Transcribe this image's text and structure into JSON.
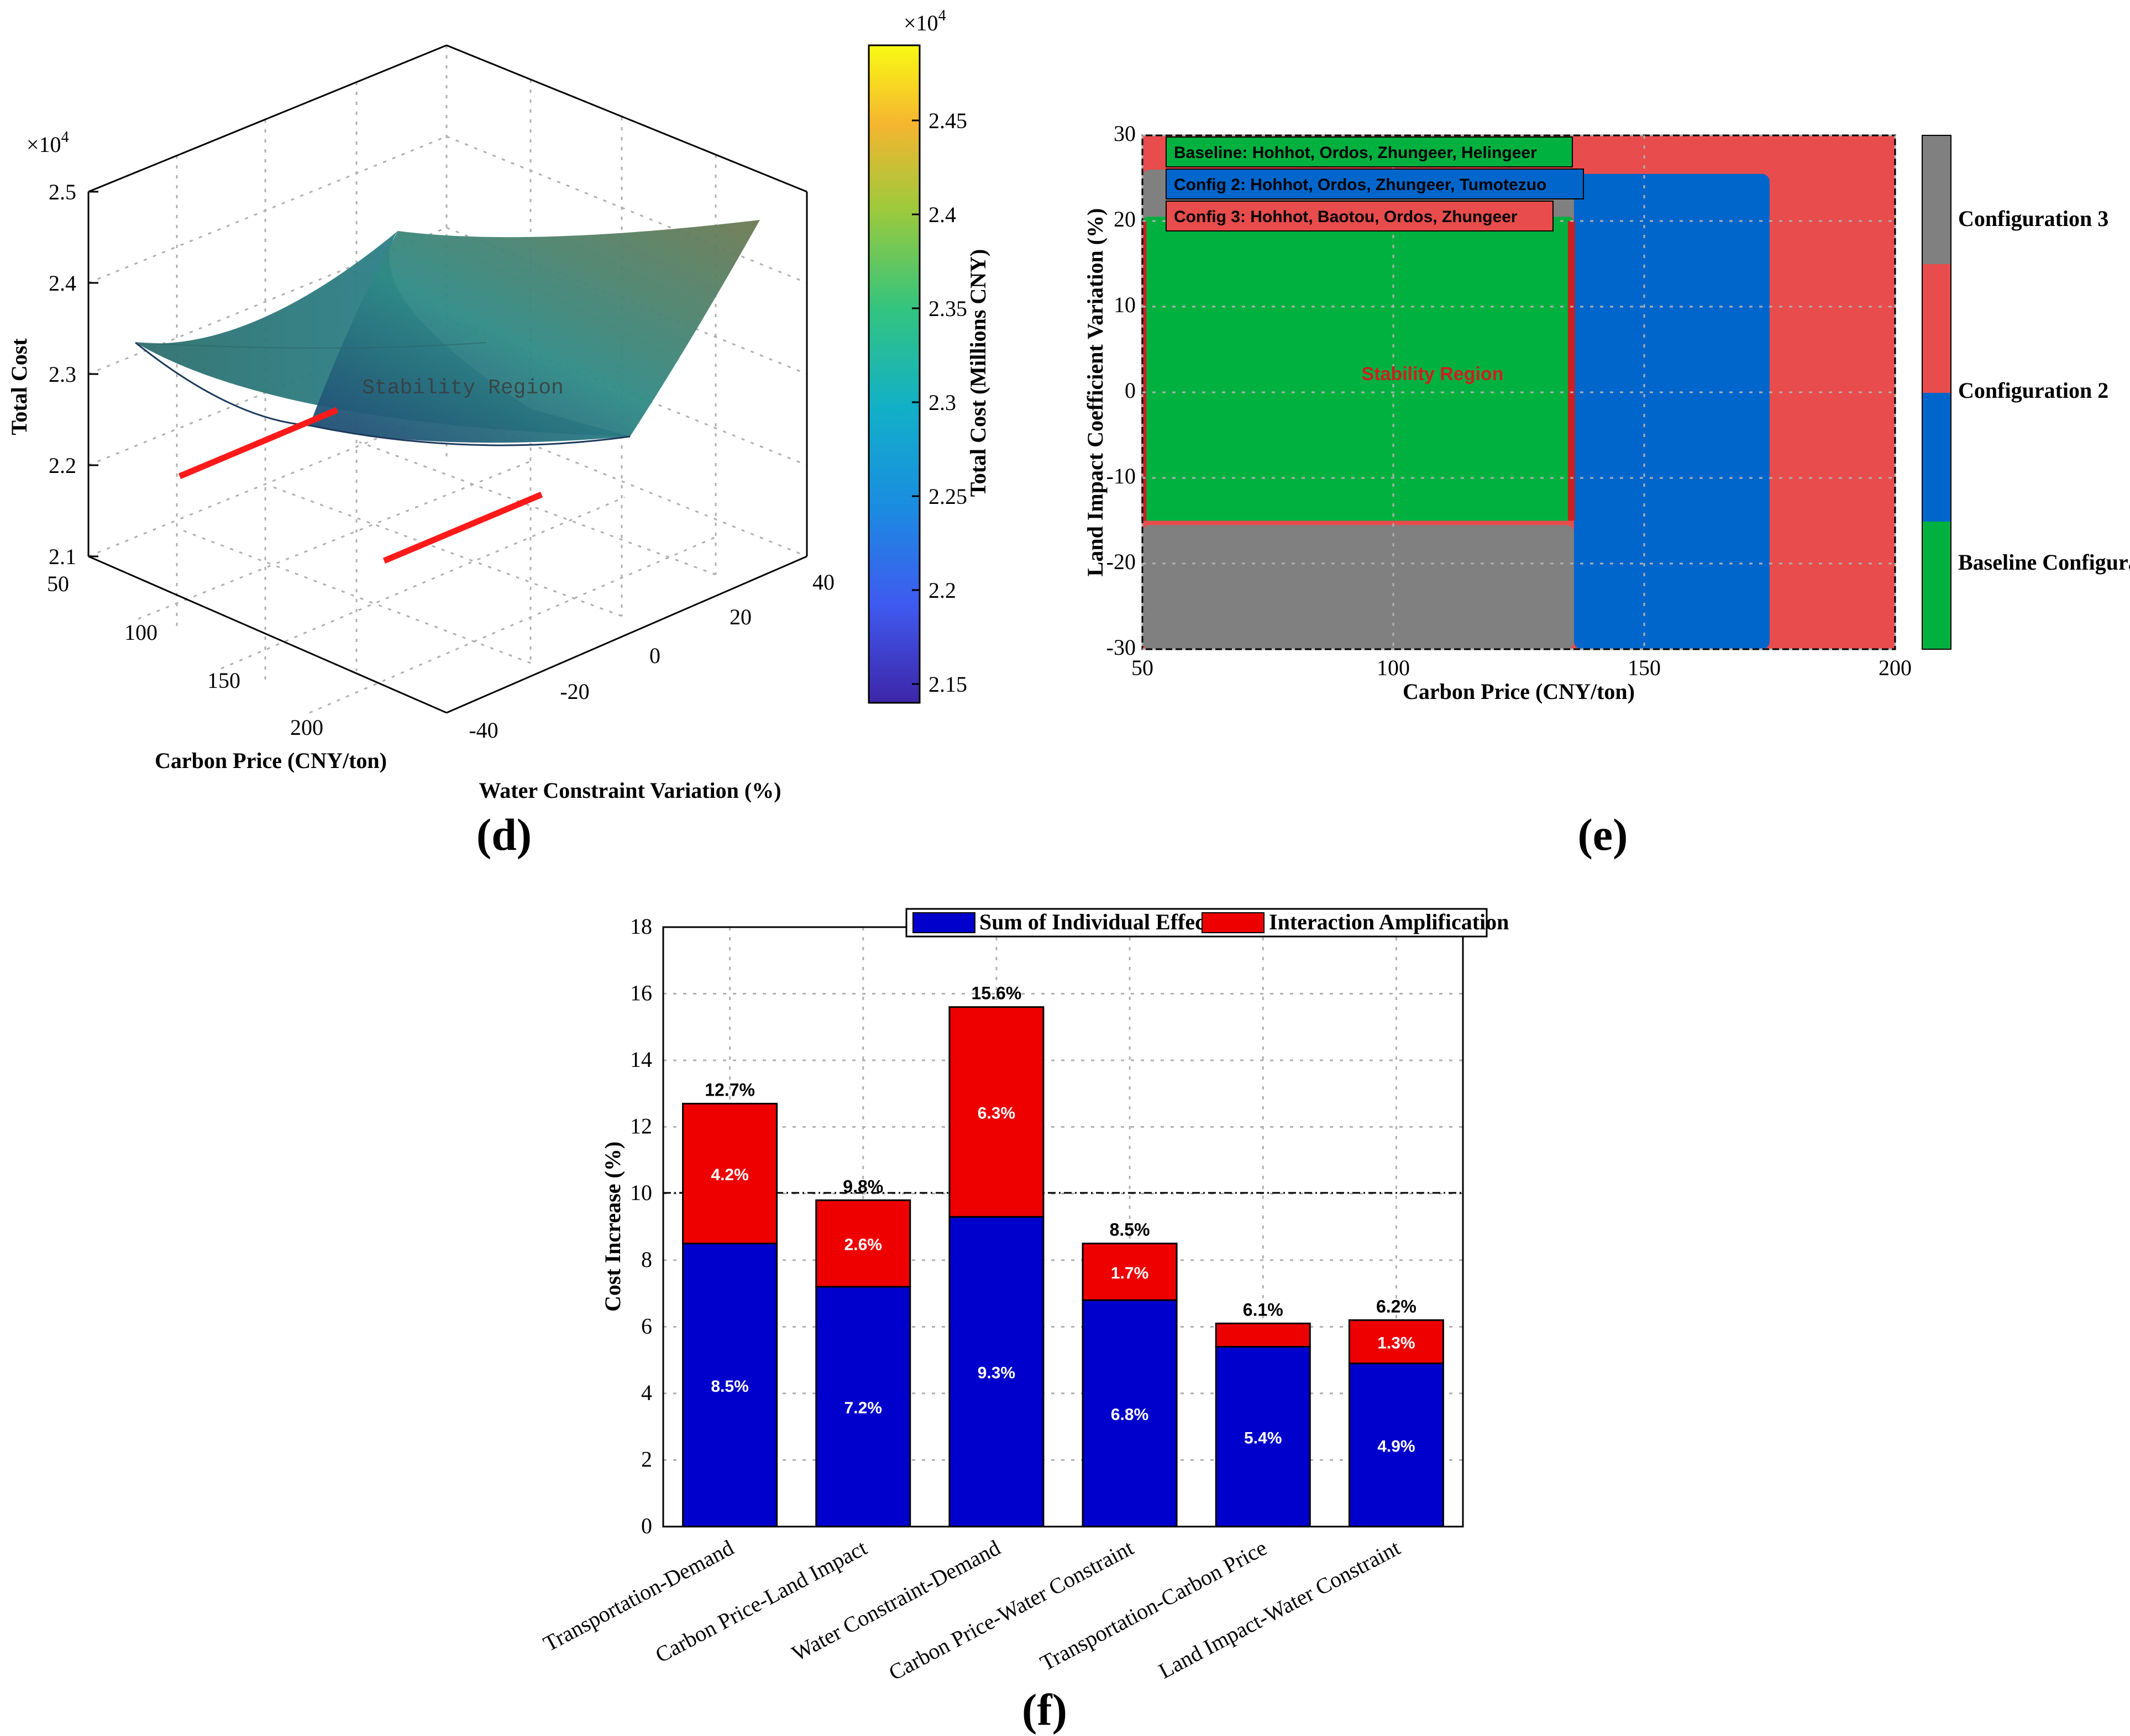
{
  "panels": {
    "d": "(d)",
    "e": "(e)",
    "f": "(f)"
  },
  "panel_d": {
    "zlabel": "Total Cost",
    "xlabel": "Carbon Price (CNY/ton)",
    "ylabel": "Water Constraint Variation (%)",
    "exponent": "×10",
    "exponent_power": "4",
    "z_ticks": [
      "2.1",
      "2.2",
      "2.3",
      "2.4",
      "2.5"
    ],
    "x_ticks": [
      "50",
      "100",
      "150",
      "200"
    ],
    "y_ticks": [
      "-40",
      "-20",
      "0",
      "20",
      "40"
    ],
    "annotation": "Stability Region",
    "colorbar": {
      "label": "Total Cost (Millions CNY)",
      "exponent": "×10",
      "exponent_power": "4",
      "ticks": [
        "2.15",
        "2.2",
        "2.25",
        "2.3",
        "2.35",
        "2.4",
        "2.45"
      ]
    }
  },
  "panel_e": {
    "xlabel": "Carbon Price (CNY/ton)",
    "ylabel": "Land Impact Coefficient Variation (%)",
    "x_ticks": [
      "50",
      "100",
      "150",
      "200"
    ],
    "y_ticks": [
      "-30",
      "-20",
      "-10",
      "0",
      "10",
      "20",
      "30"
    ],
    "legend": [
      {
        "label": "Baseline: Hohhot, Ordos, Zhungeer, Helingeer",
        "color": "#00b140"
      },
      {
        "label": "Config 2: Hohhot, Ordos, Zhungeer, Tumotezuo",
        "color": "#0066cc"
      },
      {
        "label": "Config 3: Hohhot, Baotou, Ordos, Zhungeer",
        "color": "#e84c4c"
      }
    ],
    "annotation": "Stability Region",
    "colorbar_labels": [
      "Configuration 3",
      "Configuration 2",
      "Baseline Configuration"
    ],
    "colors": {
      "baseline": "#00b140",
      "config2": "#0066cc",
      "config3": "#e84c4c",
      "gray": "#808080"
    }
  },
  "chart_data": {
    "type": "bar",
    "stacked": true,
    "categories": [
      "Transportation-Demand",
      "Carbon Price-Land Impact",
      "Water Constraint-Demand",
      "Carbon Price-Water Constraint",
      "Transportation-Carbon Price",
      "Land Impact-Water Constraint"
    ],
    "series": [
      {
        "name": "Sum of Individual Effects",
        "color": "#0000cc",
        "values": [
          8.5,
          7.2,
          9.3,
          6.8,
          5.4,
          4.9
        ],
        "labels": [
          "8.5%",
          "7.2%",
          "9.3%",
          "6.8%",
          "5.4%",
          "4.9%"
        ]
      },
      {
        "name": "Interaction Amplification",
        "color": "#ee0000",
        "values": [
          4.2,
          2.6,
          6.3,
          1.7,
          0.7,
          1.3
        ],
        "labels": [
          "4.2%",
          "2.6%",
          "6.3%",
          "1.7%",
          "",
          "1.3%"
        ]
      }
    ],
    "totals": [
      "12.7%",
      "9.8%",
      "15.6%",
      "8.5%",
      "6.1%",
      "6.2%"
    ],
    "ylabel": "Cost Increase (%)",
    "ylim": [
      0,
      18
    ],
    "yticks": [
      "0",
      "2",
      "4",
      "6",
      "8",
      "10",
      "12",
      "14",
      "16",
      "18"
    ],
    "reference_line": 10
  }
}
